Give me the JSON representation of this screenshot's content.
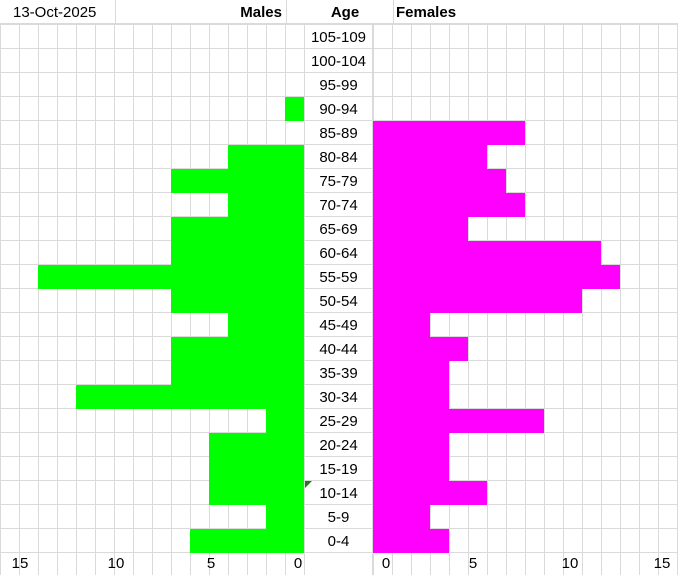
{
  "header": {
    "date": "13-Oct-2025",
    "males_label": "Males",
    "age_label": "Age",
    "females_label": "Females"
  },
  "colors": {
    "males": "#00ff00",
    "females": "#ff00ff",
    "grid": "#dadada"
  },
  "chart_data": {
    "type": "bar",
    "orientation": "horizontal population pyramid",
    "categories": [
      "105-109",
      "100-104",
      "95-99",
      "90-94",
      "85-89",
      "80-84",
      "75-79",
      "70-74",
      "65-69",
      "60-64",
      "55-59",
      "50-54",
      "45-49",
      "40-44",
      "35-39",
      "30-34",
      "25-29",
      "20-24",
      "15-19",
      "10-14",
      "5-9",
      "0-4"
    ],
    "series": [
      {
        "name": "Males",
        "values": [
          0,
          0,
          0,
          1,
          0,
          4,
          7,
          4,
          7,
          7,
          14,
          7,
          4,
          7,
          7,
          12,
          2,
          5,
          5,
          5,
          2,
          6
        ]
      },
      {
        "name": "Females",
        "values": [
          0,
          0,
          0,
          0,
          8,
          6,
          7,
          8,
          5,
          12,
          13,
          11,
          3,
          5,
          4,
          4,
          9,
          4,
          4,
          6,
          3,
          4
        ]
      }
    ],
    "xlim": [
      0,
      15
    ],
    "male_ticks": [
      "15",
      "10",
      "5",
      "0"
    ],
    "female_ticks": [
      "0",
      "5",
      "10",
      "15"
    ],
    "grid": true
  }
}
